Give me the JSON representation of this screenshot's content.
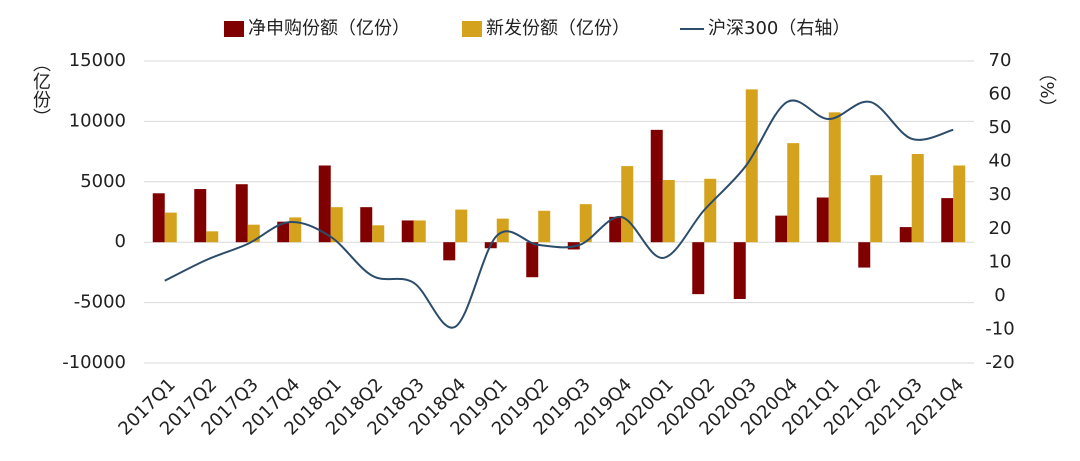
{
  "chart_data": {
    "type": "bar_line",
    "categories": [
      "2017Q1",
      "2017Q2",
      "2017Q3",
      "2017Q4",
      "2018Q1",
      "2018Q2",
      "2018Q3",
      "2018Q4",
      "2019Q1",
      "2019Q2",
      "2019Q3",
      "2019Q4",
      "2020Q1",
      "2020Q2",
      "2020Q3",
      "2020Q4",
      "2021Q1",
      "2021Q2",
      "2021Q3",
      "2021Q4"
    ],
    "series": [
      {
        "name": "净申购份额（亿份）",
        "type": "bar",
        "color": "#800000",
        "values": [
          4050,
          4400,
          4800,
          1700,
          6350,
          2900,
          1800,
          -1500,
          -500,
          -2900,
          -600,
          2100,
          9300,
          -4300,
          -4700,
          2200,
          3700,
          -2100,
          1250,
          3650
        ]
      },
      {
        "name": "新发份额（亿份）",
        "type": "bar",
        "color": "#d4a21c",
        "values": [
          2450,
          900,
          1450,
          2050,
          2900,
          1400,
          1800,
          2700,
          1950,
          2600,
          3150,
          6300,
          5150,
          5250,
          12650,
          8200,
          10750,
          5550,
          7300,
          6350
        ]
      },
      {
        "name": "沪深300（右轴）",
        "type": "line",
        "axis": "y2",
        "color": "#2b4d6b",
        "values": [
          4.5,
          10.7,
          15.5,
          22,
          17.6,
          6,
          3.9,
          -9.2,
          17.9,
          15.2,
          15.2,
          23.5,
          11.3,
          25.6,
          38.7,
          57.8,
          52.7,
          57.8,
          46.8,
          49.5
        ]
      }
    ],
    "y_label": "（亿份）",
    "y2_label": "（%）",
    "ylim": [
      -10000,
      15000
    ],
    "yticks": [
      -10000,
      -5000,
      0,
      5000,
      10000,
      15000
    ],
    "y2lim": [
      -20,
      70
    ],
    "y2ticks": [
      -20,
      -10,
      0,
      10,
      20,
      30,
      40,
      50,
      60,
      70
    ],
    "grid": true,
    "legend": "top"
  }
}
